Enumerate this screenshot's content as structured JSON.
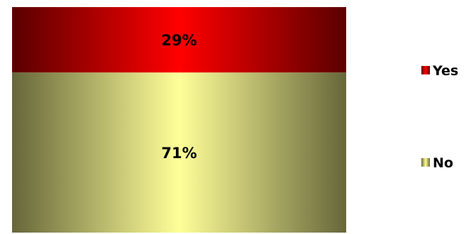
{
  "chart_data": {
    "type": "bar",
    "stacked": true,
    "percent_stacked": true,
    "categories": [
      ""
    ],
    "series": [
      {
        "name": "Yes",
        "values": [
          29
        ],
        "label": "29%",
        "color": "#ff0000",
        "shade": "#5a0000"
      },
      {
        "name": "No",
        "values": [
          71
        ],
        "label": "71%",
        "color": "#ffff99",
        "shade": "#66663a"
      }
    ],
    "ylim": [
      0,
      100
    ],
    "grid": false,
    "axes_visible": false,
    "legend_position": "right",
    "legend_order": [
      "Yes",
      "No"
    ]
  }
}
